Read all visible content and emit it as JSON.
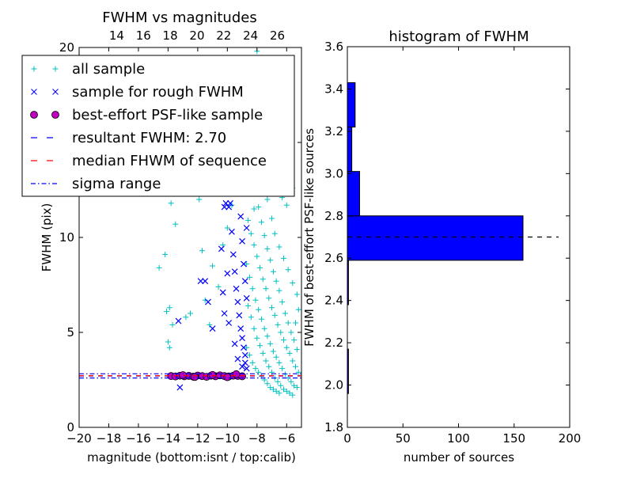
{
  "chart_data": [
    {
      "type": "scatter",
      "title": "FWHM vs magnitudes",
      "xlabel": "magnitude (bottom:isnt / top:calib)",
      "ylabel": "FWHM (pix)",
      "xlim": [
        -20,
        -5
      ],
      "ylim": [
        0,
        20
      ],
      "top_xlim": [
        11.2,
        27.8
      ],
      "x_ticks": [
        -20,
        -18,
        -16,
        -14,
        -12,
        -10,
        -8,
        -6
      ],
      "x_tick_labels": [
        "−20",
        "−18",
        "−16",
        "−14",
        "−12",
        "−10",
        "−8",
        "−6"
      ],
      "y_ticks": [
        0,
        5,
        10,
        15,
        20
      ],
      "y_tick_labels": [
        "0",
        "5",
        "10",
        "15",
        "20"
      ],
      "top_ticks": [
        14,
        16,
        18,
        20,
        22,
        24,
        26
      ],
      "top_tick_labels": [
        "14",
        "16",
        "18",
        "20",
        "22",
        "24",
        "26"
      ],
      "legend_position": "top-left",
      "legend": [
        {
          "label": "all sample",
          "marker": "plus",
          "color": "#00bfbf"
        },
        {
          "label": "sample for rough FWHM",
          "marker": "x",
          "color": "#0000ff"
        },
        {
          "label": "best-effort PSF-like sample",
          "marker": "circle",
          "color": "#bf00bf"
        },
        {
          "label": "resultant FWHM: 2.70",
          "marker": "dashed",
          "color": "#0000ff"
        },
        {
          "label": "median FHWM of sequence",
          "marker": "dashed",
          "color": "#ff0000"
        },
        {
          "label": "sigma range",
          "marker": "dashdot",
          "color": "#0000ff"
        }
      ],
      "hlines": [
        {
          "y": 2.7,
          "style": "dashed",
          "color": "#0000ff"
        },
        {
          "y": 2.72,
          "style": "dashed",
          "color": "#ff0000"
        },
        {
          "y": 2.6,
          "style": "dashdot",
          "color": "#0000ff"
        },
        {
          "y": 2.82,
          "style": "dashdot",
          "color": "#0000ff"
        }
      ],
      "series": [
        {
          "name": "all sample",
          "points": [
            [
              -14.6,
              8.4
            ],
            [
              -14.2,
              9.1
            ],
            [
              -14.0,
              13.0
            ],
            [
              -13.8,
              11.8
            ],
            [
              -14.1,
              6.1
            ],
            [
              -13.9,
              6.3
            ],
            [
              -13.7,
              5.4
            ],
            [
              -14.0,
              4.5
            ],
            [
              -13.9,
              4.2
            ],
            [
              -14.3,
              12.8
            ],
            [
              -13.5,
              10.7
            ],
            [
              -12.2,
              12.6
            ],
            [
              -11.9,
              12.0
            ],
            [
              -11.7,
              9.3
            ],
            [
              -11.5,
              6.7
            ],
            [
              -12.8,
              5.8
            ],
            [
              -12.5,
              6.0
            ],
            [
              -11.2,
              5.4
            ],
            [
              -11.0,
              8.5
            ],
            [
              -10.6,
              7.4
            ],
            [
              -10.3,
              9.6
            ],
            [
              -10.0,
              10.5
            ],
            [
              -9.7,
              11.7
            ],
            [
              -9.5,
              13.4
            ],
            [
              -9.3,
              15.0
            ],
            [
              -8.7,
              19.2
            ],
            [
              -8.6,
              18.5
            ],
            [
              -8.5,
              17.6
            ],
            [
              -8.3,
              16.8
            ],
            [
              -8.0,
              19.8
            ],
            [
              -7.8,
              19.4
            ],
            [
              -7.6,
              18.1
            ],
            [
              -7.4,
              16.9
            ],
            [
              -7.2,
              15.2
            ],
            [
              -7.0,
              13.8
            ],
            [
              -6.6,
              12.9
            ],
            [
              -6.3,
              12.1
            ],
            [
              -6.0,
              11.7
            ],
            [
              -5.6,
              12.6
            ],
            [
              -8.7,
              15.3
            ],
            [
              -8.5,
              14.1
            ],
            [
              -8.3,
              13.2
            ],
            [
              -8.1,
              12.4
            ],
            [
              -7.9,
              11.6
            ],
            [
              -7.7,
              10.8
            ],
            [
              -7.5,
              10.1
            ],
            [
              -7.3,
              9.4
            ],
            [
              -7.1,
              8.8
            ],
            [
              -6.9,
              8.2
            ],
            [
              -6.7,
              7.7
            ],
            [
              -6.5,
              7.2
            ],
            [
              -6.3,
              6.6
            ],
            [
              -6.1,
              6.0
            ],
            [
              -5.9,
              5.5
            ],
            [
              -5.7,
              5.0
            ],
            [
              -5.5,
              4.6
            ],
            [
              -5.3,
              4.1
            ],
            [
              -8.6,
              10.9
            ],
            [
              -8.4,
              10.2
            ],
            [
              -8.2,
              9.6
            ],
            [
              -8.0,
              9.0
            ],
            [
              -7.8,
              8.4
            ],
            [
              -7.6,
              7.8
            ],
            [
              -7.4,
              7.3
            ],
            [
              -7.2,
              6.8
            ],
            [
              -7.0,
              6.3
            ],
            [
              -6.8,
              5.9
            ],
            [
              -6.6,
              5.4
            ],
            [
              -6.4,
              5.0
            ],
            [
              -6.2,
              4.6
            ],
            [
              -6.0,
              4.2
            ],
            [
              -5.8,
              3.9
            ],
            [
              -5.6,
              3.5
            ],
            [
              -5.4,
              3.2
            ],
            [
              -5.2,
              2.9
            ],
            [
              -8.7,
              8.6
            ],
            [
              -8.5,
              7.9
            ],
            [
              -8.3,
              7.3
            ],
            [
              -8.1,
              6.7
            ],
            [
              -7.9,
              6.2
            ],
            [
              -7.7,
              5.7
            ],
            [
              -7.5,
              5.2
            ],
            [
              -7.3,
              4.8
            ],
            [
              -7.1,
              4.4
            ],
            [
              -6.9,
              4.0
            ],
            [
              -6.7,
              3.7
            ],
            [
              -6.5,
              3.4
            ],
            [
              -6.3,
              3.1
            ],
            [
              -6.1,
              2.8
            ],
            [
              -5.9,
              2.6
            ],
            [
              -5.7,
              2.4
            ],
            [
              -5.5,
              2.2
            ],
            [
              -5.3,
              2.1
            ],
            [
              -8.6,
              6.4
            ],
            [
              -8.4,
              5.8
            ],
            [
              -8.2,
              5.2
            ],
            [
              -8.0,
              4.7
            ],
            [
              -7.8,
              4.3
            ],
            [
              -7.6,
              3.9
            ],
            [
              -7.4,
              3.5
            ],
            [
              -7.2,
              3.2
            ],
            [
              -7.0,
              2.9
            ],
            [
              -6.8,
              2.6
            ],
            [
              -6.6,
              2.4
            ],
            [
              -6.4,
              2.2
            ],
            [
              -6.2,
              2.0
            ],
            [
              -6.0,
              1.9
            ],
            [
              -5.8,
              1.8
            ],
            [
              -5.6,
              1.7
            ],
            [
              -8.7,
              4.2
            ],
            [
              -8.5,
              3.8
            ],
            [
              -8.3,
              3.4
            ],
            [
              -8.1,
              3.1
            ],
            [
              -7.9,
              2.9
            ],
            [
              -7.7,
              2.7
            ],
            [
              -7.5,
              2.5
            ],
            [
              -7.3,
              2.3
            ],
            [
              -7.1,
              2.1
            ],
            [
              -6.9,
              2.0
            ],
            [
              -6.7,
              1.9
            ],
            [
              -6.5,
              1.8
            ],
            [
              -8.4,
              12.8
            ],
            [
              -8.2,
              11.5
            ],
            [
              -7.9,
              14.6
            ],
            [
              -7.6,
              13.3
            ],
            [
              -7.3,
              12.0
            ],
            [
              -7.0,
              11.0
            ],
            [
              -6.8,
              10.2
            ],
            [
              -6.5,
              9.5
            ],
            [
              -6.2,
              8.9
            ],
            [
              -5.9,
              8.3
            ],
            [
              -5.6,
              7.6
            ],
            [
              -5.3,
              7.0
            ],
            [
              -5.2,
              6.2
            ],
            [
              -5.4,
              5.5
            ]
          ]
        },
        {
          "name": "sample for rough FWHM",
          "points": [
            [
              -13.3,
              5.6
            ],
            [
              -13.2,
              2.1
            ],
            [
              -11.8,
              7.7
            ],
            [
              -11.5,
              7.7
            ],
            [
              -11.3,
              6.6
            ],
            [
              -11.0,
              5.2
            ],
            [
              -10.4,
              9.4
            ],
            [
              -10.3,
              7.1
            ],
            [
              -10.2,
              6.0
            ],
            [
              -10.0,
              8.1
            ],
            [
              -9.9,
              11.6
            ],
            [
              -9.8,
              11.8
            ],
            [
              -9.7,
              10.3
            ],
            [
              -9.6,
              9.1
            ],
            [
              -9.5,
              8.2
            ],
            [
              -9.4,
              7.3
            ],
            [
              -9.3,
              6.6
            ],
            [
              -9.2,
              13.8
            ],
            [
              -9.2,
              5.9
            ],
            [
              -9.1,
              11.1
            ],
            [
              -9.1,
              5.2
            ],
            [
              -9.0,
              9.8
            ],
            [
              -9.0,
              4.7
            ],
            [
              -8.9,
              8.6
            ],
            [
              -8.9,
              4.2
            ],
            [
              -8.8,
              7.7
            ],
            [
              -8.8,
              3.8
            ],
            [
              -8.8,
              3.4
            ],
            [
              -8.7,
              10.5
            ],
            [
              -8.7,
              6.8
            ],
            [
              -8.7,
              3.1
            ],
            [
              -9.4,
              12.6
            ],
            [
              -9.6,
              14.0
            ],
            [
              -10.2,
              11.6
            ],
            [
              -10.1,
              11.8
            ],
            [
              -9.9,
              5.5
            ],
            [
              -9.5,
              4.4
            ],
            [
              -9.3,
              3.6
            ],
            [
              -9.0,
              3.2
            ]
          ]
        },
        {
          "name": "best-effort PSF-like sample",
          "points": [
            [
              -13.8,
              2.7
            ],
            [
              -13.5,
              2.68
            ],
            [
              -13.2,
              2.72
            ],
            [
              -12.9,
              2.69
            ],
            [
              -12.6,
              2.71
            ],
            [
              -12.3,
              2.67
            ],
            [
              -12.0,
              2.73
            ],
            [
              -11.7,
              2.7
            ],
            [
              -11.4,
              2.66
            ],
            [
              -11.1,
              2.72
            ],
            [
              -10.8,
              2.69
            ],
            [
              -10.5,
              2.74
            ],
            [
              -10.2,
              2.7
            ],
            [
              -9.9,
              2.68
            ],
            [
              -9.6,
              2.72
            ],
            [
              -9.3,
              2.71
            ],
            [
              -9.0,
              2.69
            ],
            [
              -13.0,
              2.75
            ],
            [
              -12.2,
              2.65
            ],
            [
              -11.0,
              2.76
            ],
            [
              -10.0,
              2.64
            ],
            [
              -9.4,
              2.8
            ]
          ]
        }
      ]
    },
    {
      "type": "bar",
      "orientation": "horizontal",
      "title": "histogram of FWHM",
      "xlabel": "number of sources",
      "ylabel": "FWHM of best-effort PSF-like sources",
      "xlim": [
        0,
        200
      ],
      "ylim": [
        1.8,
        3.6
      ],
      "x_ticks": [
        0,
        50,
        100,
        150,
        200
      ],
      "x_tick_labels": [
        "0",
        "50",
        "100",
        "150",
        "200"
      ],
      "y_ticks": [
        1.8,
        2.0,
        2.2,
        2.4,
        2.6,
        2.8,
        3.0,
        3.2,
        3.4,
        3.6
      ],
      "y_tick_labels": [
        "1.8",
        "2.0",
        "2.2",
        "2.4",
        "2.6",
        "2.8",
        "3.0",
        "3.2",
        "3.4",
        "3.6"
      ],
      "bars": [
        {
          "y0": 1.96,
          "y1": 2.17,
          "count": 1
        },
        {
          "y0": 2.38,
          "y1": 2.59,
          "count": 1
        },
        {
          "y0": 2.59,
          "y1": 2.8,
          "count": 158
        },
        {
          "y0": 2.8,
          "y1": 3.01,
          "count": 11
        },
        {
          "y0": 3.01,
          "y1": 3.22,
          "count": 4
        },
        {
          "y0": 3.22,
          "y1": 3.43,
          "count": 7
        }
      ],
      "bar_color": "#0000ff",
      "hline": {
        "y": 2.7,
        "x_end": 190,
        "style": "dashed",
        "color": "#000000"
      }
    }
  ]
}
